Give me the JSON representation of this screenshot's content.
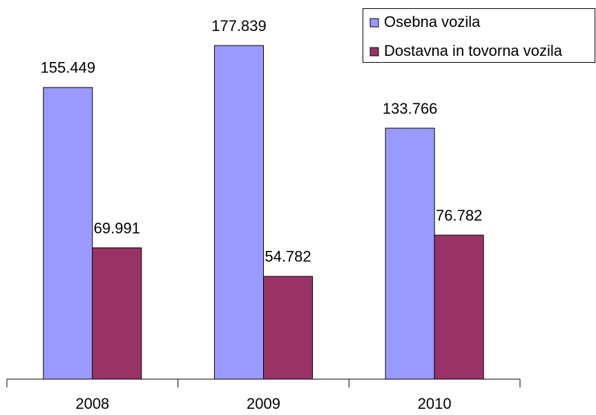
{
  "chart_data": {
    "type": "bar",
    "categories": [
      "2008",
      "2009",
      "2010"
    ],
    "series": [
      {
        "name": "Osebna vozila",
        "color": "#9999ff",
        "values": [
          155449,
          177839,
          133766
        ],
        "value_labels": [
          "155.449",
          "177.839",
          "133.766"
        ]
      },
      {
        "name": "Dostavna in tovorna vozila",
        "color": "#993366",
        "values": [
          69991,
          54782,
          76782
        ],
        "value_labels": [
          "69.991",
          "54.782",
          "76.782"
        ]
      }
    ],
    "legend": "top-right"
  }
}
